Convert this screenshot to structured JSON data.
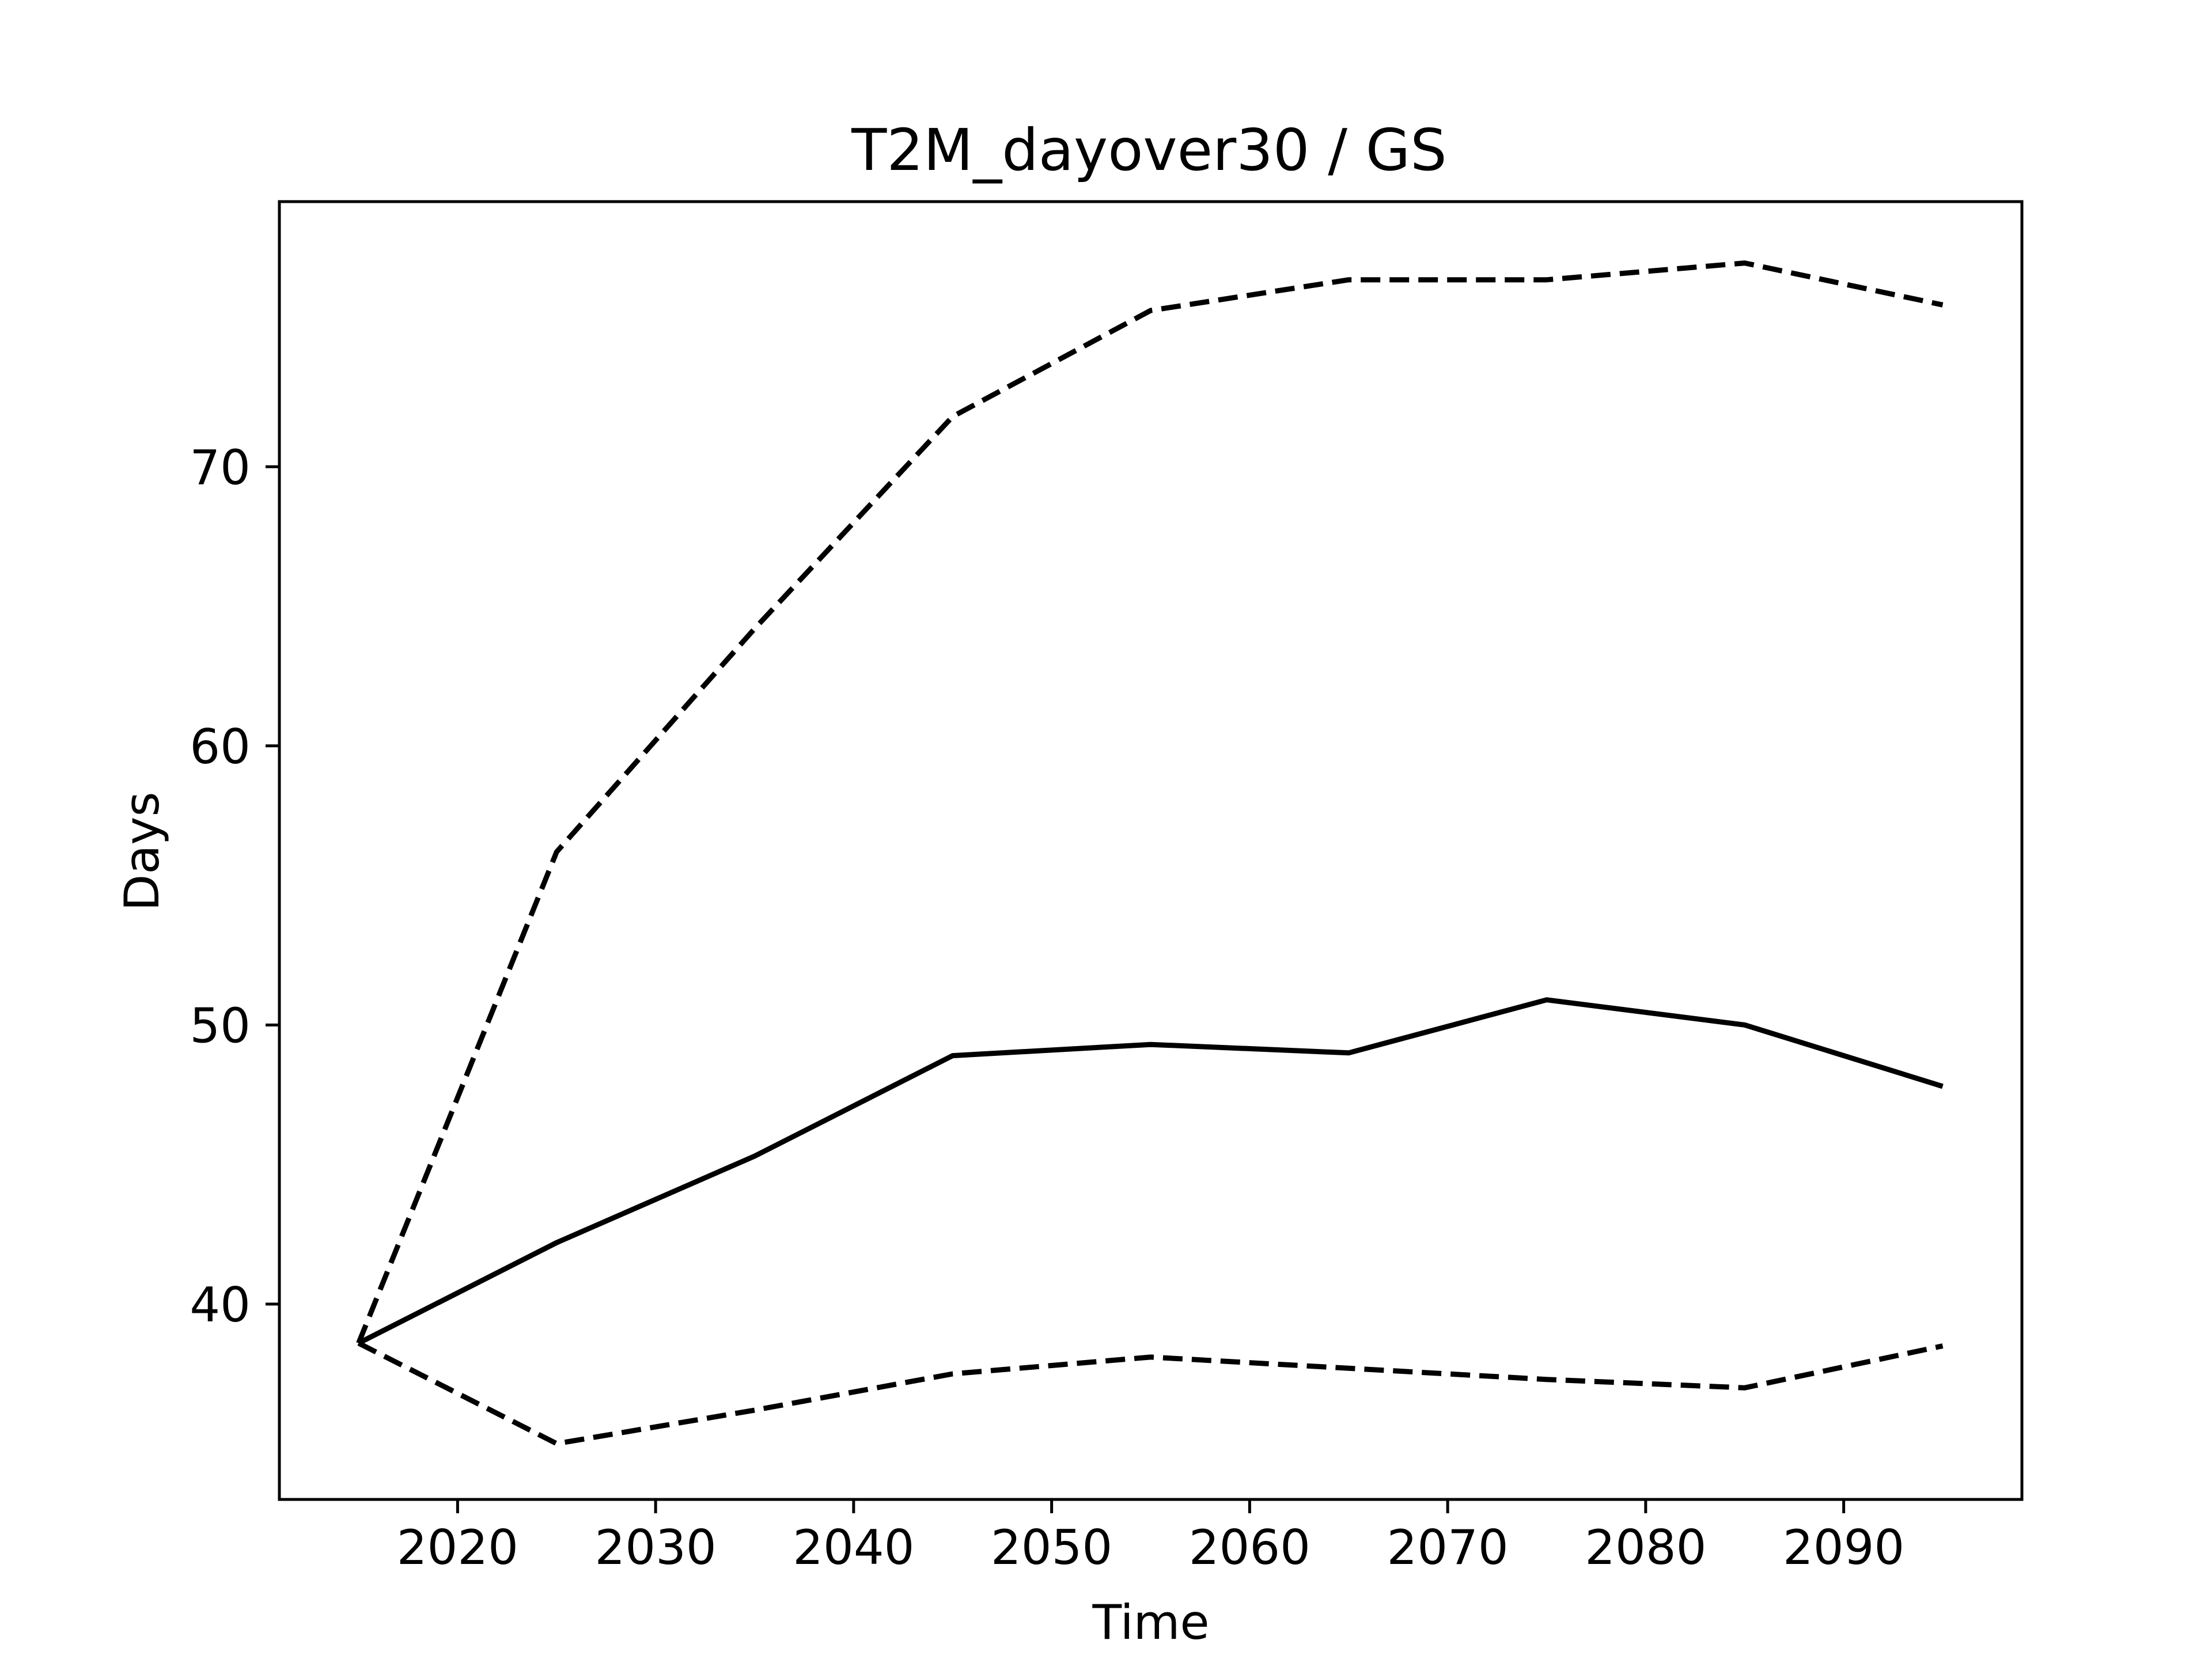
{
  "chart_data": {
    "type": "line",
    "title": "T2M_dayover30 / GS",
    "xlabel": "Time",
    "ylabel": "Days",
    "xlim": [
      2011,
      2099
    ],
    "ylim": [
      33,
      79.5
    ],
    "xticks": [
      2020,
      2030,
      2040,
      2050,
      2060,
      2070,
      2080,
      2090
    ],
    "yticks": [
      40,
      50,
      60,
      70
    ],
    "grid": false,
    "legend": "none",
    "x": [
      2015,
      2025,
      2035,
      2045,
      2055,
      2065,
      2075,
      2085,
      2095
    ],
    "series": [
      {
        "style": "dashed",
        "color": "#000000",
        "values": [
          38.6,
          56.2,
          64.2,
          71.8,
          75.6,
          76.7,
          76.7,
          77.3,
          75.8
        ]
      },
      {
        "style": "solid",
        "color": "#000000",
        "values": [
          38.6,
          42.2,
          45.3,
          48.9,
          49.3,
          49.0,
          50.9,
          50.0,
          47.8
        ]
      },
      {
        "style": "dashed",
        "color": "#000000",
        "values": [
          38.6,
          35.0,
          36.2,
          37.5,
          38.1,
          37.7,
          37.3,
          37.0,
          38.5
        ]
      }
    ]
  }
}
